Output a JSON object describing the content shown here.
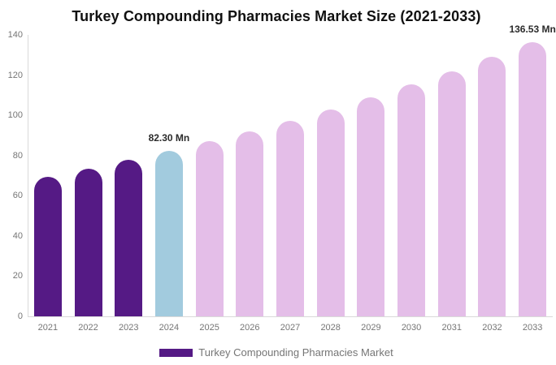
{
  "title": "Turkey Compounding Pharmacies Market Size (2021-2033)",
  "legend": {
    "label": "Turkey Compounding Pharmacies Market",
    "swatch_color": "#551A85"
  },
  "colors": {
    "historical": "#551A85",
    "base_year": "#A2CBDE",
    "forecast": "#E4BEE8",
    "axis_line": "#D9D9D9",
    "tick_text": "#757575",
    "annotation_text": "#2B2B2B"
  },
  "chart_data": {
    "type": "bar",
    "title": "Turkey Compounding Pharmacies Market Size (2021-2033)",
    "xlabel": "",
    "ylabel": "",
    "unit": "Mn",
    "categories": [
      "2021",
      "2022",
      "2023",
      "2024",
      "2025",
      "2026",
      "2027",
      "2028",
      "2029",
      "2030",
      "2031",
      "2032",
      "2033"
    ],
    "values": [
      69.6,
      73.6,
      77.8,
      82.3,
      87.1,
      92.1,
      97.4,
      103.0,
      109.0,
      115.3,
      122.0,
      129.0,
      136.53
    ],
    "bar_colors": [
      "#551A85",
      "#551A85",
      "#551A85",
      "#A2CBDE",
      "#E4BEE8",
      "#E4BEE8",
      "#E4BEE8",
      "#E4BEE8",
      "#E4BEE8",
      "#E4BEE8",
      "#E4BEE8",
      "#E4BEE8",
      "#E4BEE8"
    ],
    "ylim": [
      0,
      140
    ],
    "yticks": [
      0,
      20,
      40,
      60,
      80,
      100,
      120,
      140
    ],
    "grid": false,
    "legend_position": "bottom",
    "annotations": [
      {
        "category": "2024",
        "text": "82.30 Mn"
      },
      {
        "category": "2033",
        "text": "136.53 Mn"
      }
    ]
  }
}
